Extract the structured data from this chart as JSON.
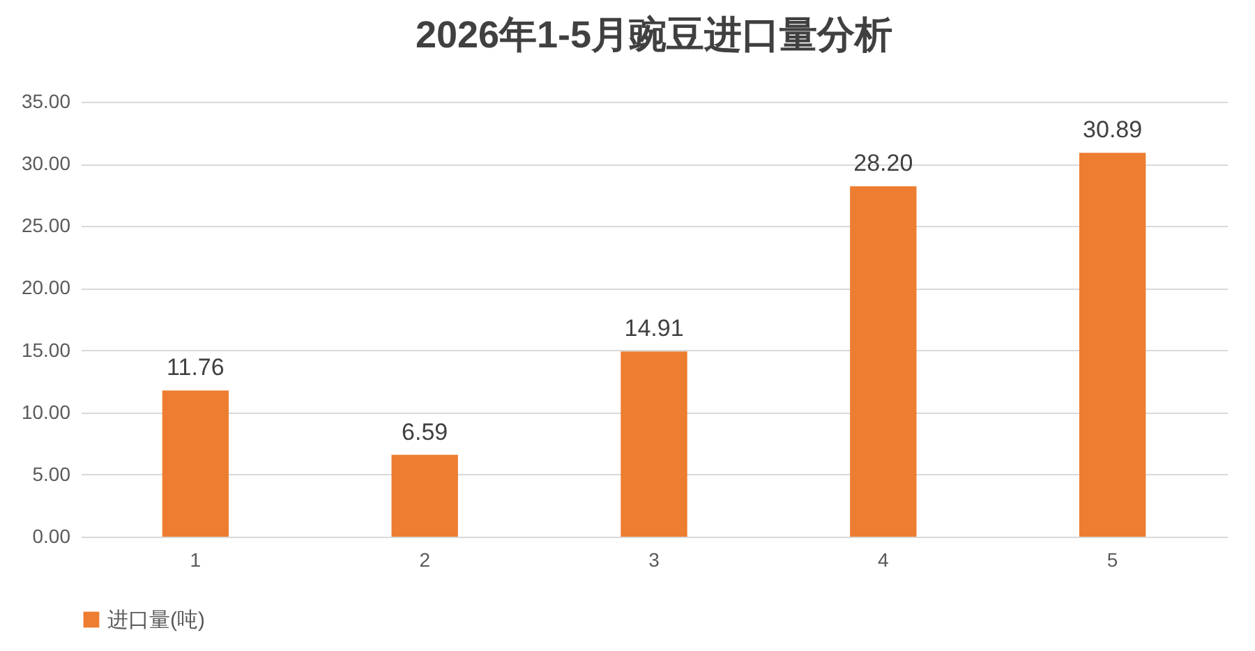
{
  "chart_data": {
    "type": "bar",
    "title": "2026年1-5月豌豆进口量分析",
    "categories": [
      "1",
      "2",
      "3",
      "4",
      "5"
    ],
    "series": [
      {
        "name": "进口量(吨)",
        "color": "#ed7d31",
        "values": [
          11.76,
          6.59,
          14.91,
          28.2,
          30.89
        ],
        "value_labels": [
          "11.76",
          "6.59",
          "14.91",
          "28.20",
          "30.89"
        ]
      }
    ],
    "ylim": [
      0,
      35
    ],
    "yticks": [
      {
        "value": 0,
        "label": "0.00"
      },
      {
        "value": 5,
        "label": "5.00"
      },
      {
        "value": 10,
        "label": "10.00"
      },
      {
        "value": 15,
        "label": "15.00"
      },
      {
        "value": 20,
        "label": "20.00"
      },
      {
        "value": 25,
        "label": "25.00"
      },
      {
        "value": 30,
        "label": "30.00"
      },
      {
        "value": 35,
        "label": "35.00"
      }
    ],
    "grid": "y",
    "legend": "bottom"
  }
}
